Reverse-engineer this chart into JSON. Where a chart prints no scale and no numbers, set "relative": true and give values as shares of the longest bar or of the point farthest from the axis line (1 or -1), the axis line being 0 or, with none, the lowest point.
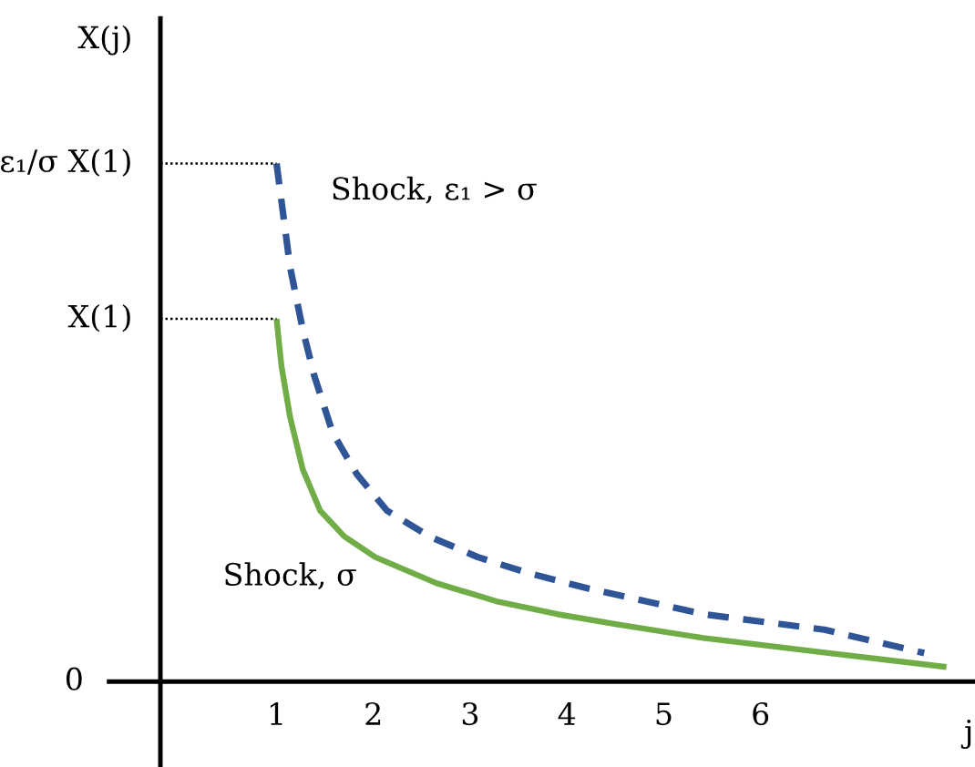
{
  "chart_data": {
    "type": "line",
    "relative": true,
    "xlabel": "j",
    "ylabel": "X(j)",
    "xlim": [
      -0.2,
      8.2
    ],
    "xticks": [
      1,
      2,
      3,
      4,
      5,
      6
    ],
    "series": [
      {
        "name": "Shock, ε₁ > σ",
        "color": "#2f5597",
        "line_style": "dashed",
        "x": [
          1.0,
          1.14,
          1.27,
          1.39,
          1.58,
          1.83,
          2.14,
          2.58,
          3.08,
          3.59,
          4.21,
          5.41,
          6.66,
          7.69
        ],
        "values": [
          1.0,
          0.8,
          0.68,
          0.59,
          0.48,
          0.4,
          0.33,
          0.28,
          0.24,
          0.21,
          0.18,
          0.13,
          0.1,
          0.055
        ]
      },
      {
        "name": "Shock, σ",
        "color": "#70ad47",
        "line_style": "solid",
        "x": [
          1.0,
          1.05,
          1.14,
          1.27,
          1.45,
          1.7,
          2.02,
          2.65,
          3.27,
          3.9,
          4.53,
          5.41,
          6.66,
          7.92
        ],
        "values": [
          0.7,
          0.61,
          0.51,
          0.41,
          0.33,
          0.28,
          0.24,
          0.19,
          0.155,
          0.13,
          0.11,
          0.084,
          0.056,
          0.028
        ]
      },
      {
        "color": "#000000",
        "line_style": "dotted",
        "x": [
          -0.2,
          1.0
        ],
        "values": [
          1.0,
          1.0
        ]
      },
      {
        "color": "#000000",
        "line_style": "dotted",
        "x": [
          -0.2,
          1.0
        ],
        "values": [
          0.7,
          0.7
        ]
      }
    ],
    "annotations": [
      {
        "text": "ε₁/σ X(1)",
        "x": -0.2,
        "y": 1.0
      },
      {
        "text": "X(1)",
        "x": -0.2,
        "y": 0.7
      },
      "0"
    ]
  }
}
